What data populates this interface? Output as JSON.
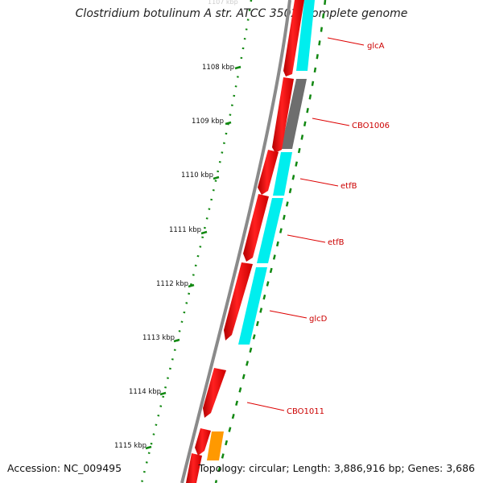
{
  "map": {
    "title": "Clostridium botulinum A str. ATCC 3502, complete genome",
    "accession_text": "Accession: NC_009495",
    "topology_text": "Topology: circular; Length: 3,886,916 bp; Genes: 3,686"
  },
  "ticks": [
    {
      "label": "1108 kbp"
    },
    {
      "label": "1109 kbp"
    },
    {
      "label": "1110 kbp"
    },
    {
      "label": "1111 kbp"
    },
    {
      "label": "1112 kbp"
    },
    {
      "label": "1113 kbp"
    },
    {
      "label": "1114 kbp"
    },
    {
      "label": "1115 kbp"
    }
  ],
  "gene_labels": [
    {
      "label": "glcA"
    },
    {
      "label": "CBO1006"
    },
    {
      "label": "etfB"
    },
    {
      "label": "etfB"
    },
    {
      "label": "glcD"
    },
    {
      "label": "CBO1011"
    }
  ],
  "colors": {
    "forward_gene": "#ee1111",
    "cog_cyan": "#00eeee",
    "cog_gray": "#6e6e6e",
    "cog_orange": "#ff9900",
    "backbone": "#8a8a8a",
    "gc_dots": "#118811",
    "label_text": "#cc0000",
    "connector": "#dd0000"
  }
}
